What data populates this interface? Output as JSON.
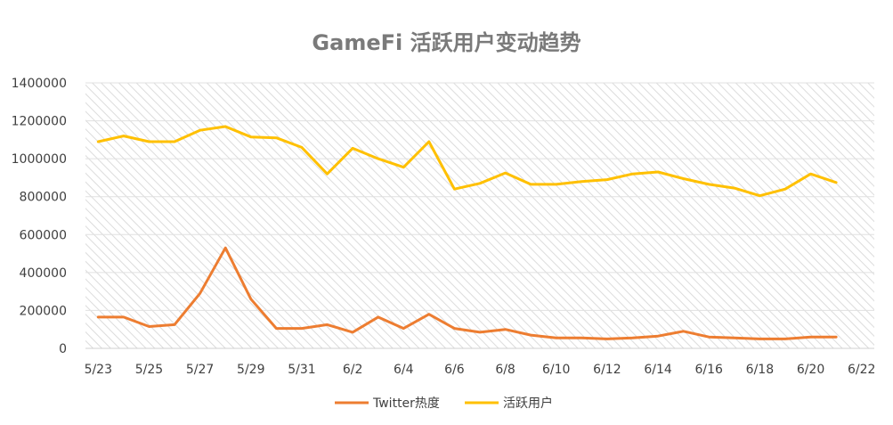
{
  "chart_data": {
    "type": "line",
    "title": "GameFi 活跃用户变动趋势",
    "xlabel": "",
    "ylabel": "",
    "ylim": [
      0,
      1400000
    ],
    "yticks": [
      "0",
      "200000",
      "400000",
      "600000",
      "800000",
      "1000000",
      "1200000",
      "1400000"
    ],
    "xtick_labels": [
      "5/23",
      "5/25",
      "5/27",
      "5/29",
      "5/31",
      "6/2",
      "6/4",
      "6/6",
      "6/8",
      "6/10",
      "6/12",
      "6/14",
      "6/16",
      "6/18",
      "6/20",
      "6/22"
    ],
    "categories": [
      "5/23",
      "5/24",
      "5/25",
      "5/26",
      "5/27",
      "5/28",
      "5/29",
      "5/30",
      "5/31",
      "6/1",
      "6/2",
      "6/3",
      "6/4",
      "6/5",
      "6/6",
      "6/7",
      "6/8",
      "6/9",
      "6/10",
      "6/11",
      "6/12",
      "6/13",
      "6/14",
      "6/15",
      "6/16",
      "6/17",
      "6/18",
      "6/19",
      "6/20",
      "6/21"
    ],
    "grid": true,
    "legend": "bottom",
    "series": [
      {
        "name": "Twitter热度",
        "color": "#ED7D31",
        "values": [
          165000,
          165000,
          115000,
          125000,
          290000,
          530000,
          260000,
          105000,
          105000,
          125000,
          85000,
          165000,
          105000,
          180000,
          105000,
          85000,
          100000,
          70000,
          55000,
          55000,
          50000,
          55000,
          65000,
          90000,
          60000,
          55000,
          50000,
          50000,
          60000,
          60000
        ]
      },
      {
        "name": "活跃用户",
        "color": "#FFC000",
        "values": [
          1090000,
          1120000,
          1090000,
          1090000,
          1150000,
          1170000,
          1115000,
          1110000,
          1060000,
          920000,
          1055000,
          1000000,
          955000,
          1090000,
          840000,
          870000,
          925000,
          865000,
          865000,
          880000,
          890000,
          920000,
          930000,
          895000,
          865000,
          845000,
          805000,
          840000,
          920000,
          875000
        ]
      }
    ]
  }
}
